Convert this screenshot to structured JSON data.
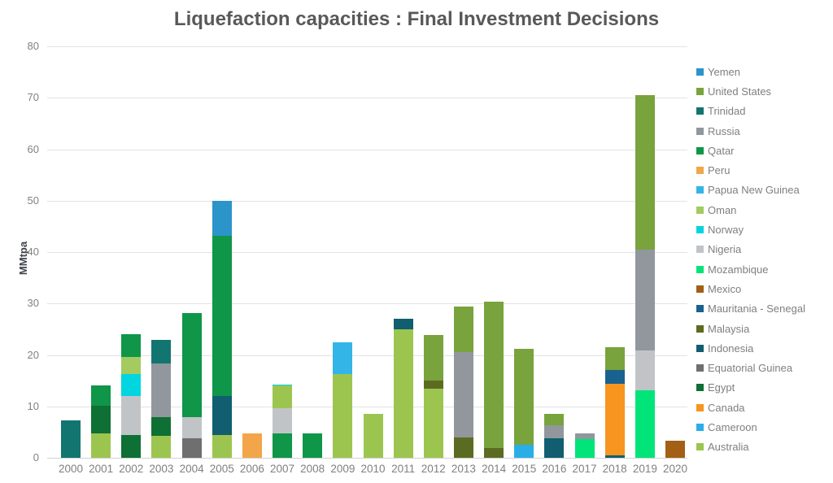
{
  "title": "Liquefaction capacities : Final Investment Decisions",
  "y_axis": {
    "label": "MMtpa",
    "ticks": [
      0,
      10,
      20,
      30,
      40,
      50,
      60,
      70,
      80
    ]
  },
  "x_axis": {
    "years": [
      "2000",
      "2001",
      "2002",
      "2003",
      "2004",
      "2005",
      "2006",
      "2007",
      "2008",
      "2009",
      "2010",
      "2011",
      "2012",
      "2013",
      "2014",
      "2015",
      "2016",
      "2017",
      "2018",
      "2019",
      "2020"
    ]
  },
  "legend": {
    "position": "right",
    "items": [
      {
        "label": "Yemen",
        "color": "#2b94c9"
      },
      {
        "label": "United States",
        "color": "#79a33c"
      },
      {
        "label": "Trinidad",
        "color": "#12756f"
      },
      {
        "label": "Russia",
        "color": "#91979c"
      },
      {
        "label": "Qatar",
        "color": "#0f9648"
      },
      {
        "label": "Peru",
        "color": "#f3a54a"
      },
      {
        "label": "Papua New Guinea",
        "color": "#33b5e8"
      },
      {
        "label": "Oman",
        "color": "#a3cb5f"
      },
      {
        "label": "Norway",
        "color": "#00d5e0"
      },
      {
        "label": "Nigeria",
        "color": "#c1c4c7"
      },
      {
        "label": "Mozambique",
        "color": "#00e47a"
      },
      {
        "label": "Mexico",
        "color": "#a35f14"
      },
      {
        "label": "Mauritania - Senegal",
        "color": "#19628f"
      },
      {
        "label": "Malaysia",
        "color": "#5c6b22"
      },
      {
        "label": "Indonesia",
        "color": "#115e70"
      },
      {
        "label": "Equatorial Guinea",
        "color": "#6f6f6f"
      },
      {
        "label": "Egypt",
        "color": "#0e7034"
      },
      {
        "label": "Canada",
        "color": "#f6951f"
      },
      {
        "label": "Cameroon",
        "color": "#2aaee8"
      },
      {
        "label": "Australia",
        "color": "#9cc550"
      }
    ]
  },
  "chart_data": {
    "type": "bar",
    "stacked": true,
    "title": "Liquefaction capacities : Final Investment Decisions",
    "xlabel": "",
    "ylabel": "MMtpa",
    "ylim": [
      0,
      80
    ],
    "grid": true,
    "legend_position": "right",
    "categories": [
      "2000",
      "2001",
      "2002",
      "2003",
      "2004",
      "2005",
      "2006",
      "2007",
      "2008",
      "2009",
      "2010",
      "2011",
      "2012",
      "2013",
      "2014",
      "2015",
      "2016",
      "2017",
      "2018",
      "2019",
      "2020"
    ],
    "bars": [
      {
        "year": "2000",
        "total": 7.2,
        "segments": [
          {
            "country": "Trinidad",
            "value": 7.2
          }
        ]
      },
      {
        "year": "2001",
        "total": 14.0,
        "segments": [
          {
            "country": "Australia",
            "value": 4.7
          },
          {
            "country": "Egypt",
            "value": 5.5
          },
          {
            "country": "Qatar",
            "value": 3.8
          }
        ]
      },
      {
        "year": "2002",
        "total": 24.0,
        "segments": [
          {
            "country": "Egypt",
            "value": 4.4
          },
          {
            "country": "Nigeria",
            "value": 7.6
          },
          {
            "country": "Norway",
            "value": 4.3
          },
          {
            "country": "Oman",
            "value": 3.3
          },
          {
            "country": "Qatar",
            "value": 4.4
          }
        ]
      },
      {
        "year": "2003",
        "total": 23.0,
        "segments": [
          {
            "country": "Australia",
            "value": 4.3
          },
          {
            "country": "Egypt",
            "value": 3.6
          },
          {
            "country": "Russia",
            "value": 10.5
          },
          {
            "country": "Trinidad",
            "value": 4.6
          }
        ]
      },
      {
        "year": "2004",
        "total": 28.2,
        "segments": [
          {
            "country": "Equatorial Guinea",
            "value": 3.8
          },
          {
            "country": "Nigeria",
            "value": 4.1
          },
          {
            "country": "Qatar",
            "value": 20.3
          }
        ]
      },
      {
        "year": "2005",
        "total": 49.9,
        "segments": [
          {
            "country": "Australia",
            "value": 4.4
          },
          {
            "country": "Indonesia",
            "value": 7.6
          },
          {
            "country": "Qatar",
            "value": 31.2
          },
          {
            "country": "Yemen",
            "value": 6.7
          }
        ]
      },
      {
        "year": "2006",
        "total": 4.7,
        "segments": [
          {
            "country": "Peru",
            "value": 4.7
          }
        ]
      },
      {
        "year": "2007",
        "total": 14.3,
        "segments": [
          {
            "country": "Qatar",
            "value": 4.8
          },
          {
            "country": "Nigeria",
            "value": 4.9
          },
          {
            "country": "Australia",
            "value": 4.3
          },
          {
            "country": "Norway",
            "value": 0.3
          }
        ]
      },
      {
        "year": "2008",
        "total": 4.8,
        "segments": [
          {
            "country": "Qatar",
            "value": 4.8
          }
        ]
      },
      {
        "year": "2009",
        "total": 22.4,
        "segments": [
          {
            "country": "Australia",
            "value": 16.3
          },
          {
            "country": "Papua New Guinea",
            "value": 6.1
          }
        ]
      },
      {
        "year": "2010",
        "total": 8.5,
        "segments": [
          {
            "country": "Australia",
            "value": 8.5
          }
        ]
      },
      {
        "year": "2011",
        "total": 27.0,
        "segments": [
          {
            "country": "Australia",
            "value": 25.0
          },
          {
            "country": "Indonesia",
            "value": 2.0
          }
        ]
      },
      {
        "year": "2012",
        "total": 23.9,
        "segments": [
          {
            "country": "Australia",
            "value": 13.5
          },
          {
            "country": "Malaysia",
            "value": 1.5
          },
          {
            "country": "United States",
            "value": 8.9
          }
        ]
      },
      {
        "year": "2013",
        "total": 29.4,
        "segments": [
          {
            "country": "Malaysia",
            "value": 4.0
          },
          {
            "country": "Russia",
            "value": 16.5
          },
          {
            "country": "United States",
            "value": 8.9
          }
        ]
      },
      {
        "year": "2014",
        "total": 30.4,
        "segments": [
          {
            "country": "Malaysia",
            "value": 1.9
          },
          {
            "country": "United States",
            "value": 28.5
          }
        ]
      },
      {
        "year": "2015",
        "total": 21.2,
        "segments": [
          {
            "country": "Cameroon",
            "value": 2.6
          },
          {
            "country": "United States",
            "value": 18.6
          }
        ]
      },
      {
        "year": "2016",
        "total": 8.5,
        "segments": [
          {
            "country": "Indonesia",
            "value": 3.8
          },
          {
            "country": "Russia",
            "value": 2.5
          },
          {
            "country": "United States",
            "value": 2.2
          }
        ]
      },
      {
        "year": "2017",
        "total": 4.7,
        "segments": [
          {
            "country": "Mozambique",
            "value": 3.6
          },
          {
            "country": "Russia",
            "value": 1.1
          }
        ]
      },
      {
        "year": "2018",
        "total": 21.5,
        "segments": [
          {
            "country": "Indonesia",
            "value": 0.5
          },
          {
            "country": "Canada",
            "value": 13.9
          },
          {
            "country": "Mauritania - Senegal",
            "value": 2.6
          },
          {
            "country": "United States",
            "value": 4.5
          }
        ]
      },
      {
        "year": "2019",
        "total": 70.5,
        "segments": [
          {
            "country": "Mozambique",
            "value": 13.1
          },
          {
            "country": "Nigeria",
            "value": 7.7
          },
          {
            "country": "Russia",
            "value": 19.7
          },
          {
            "country": "United States",
            "value": 30.0
          }
        ]
      },
      {
        "year": "2020",
        "total": 3.3,
        "segments": [
          {
            "country": "Mexico",
            "value": 3.3
          }
        ]
      }
    ]
  }
}
